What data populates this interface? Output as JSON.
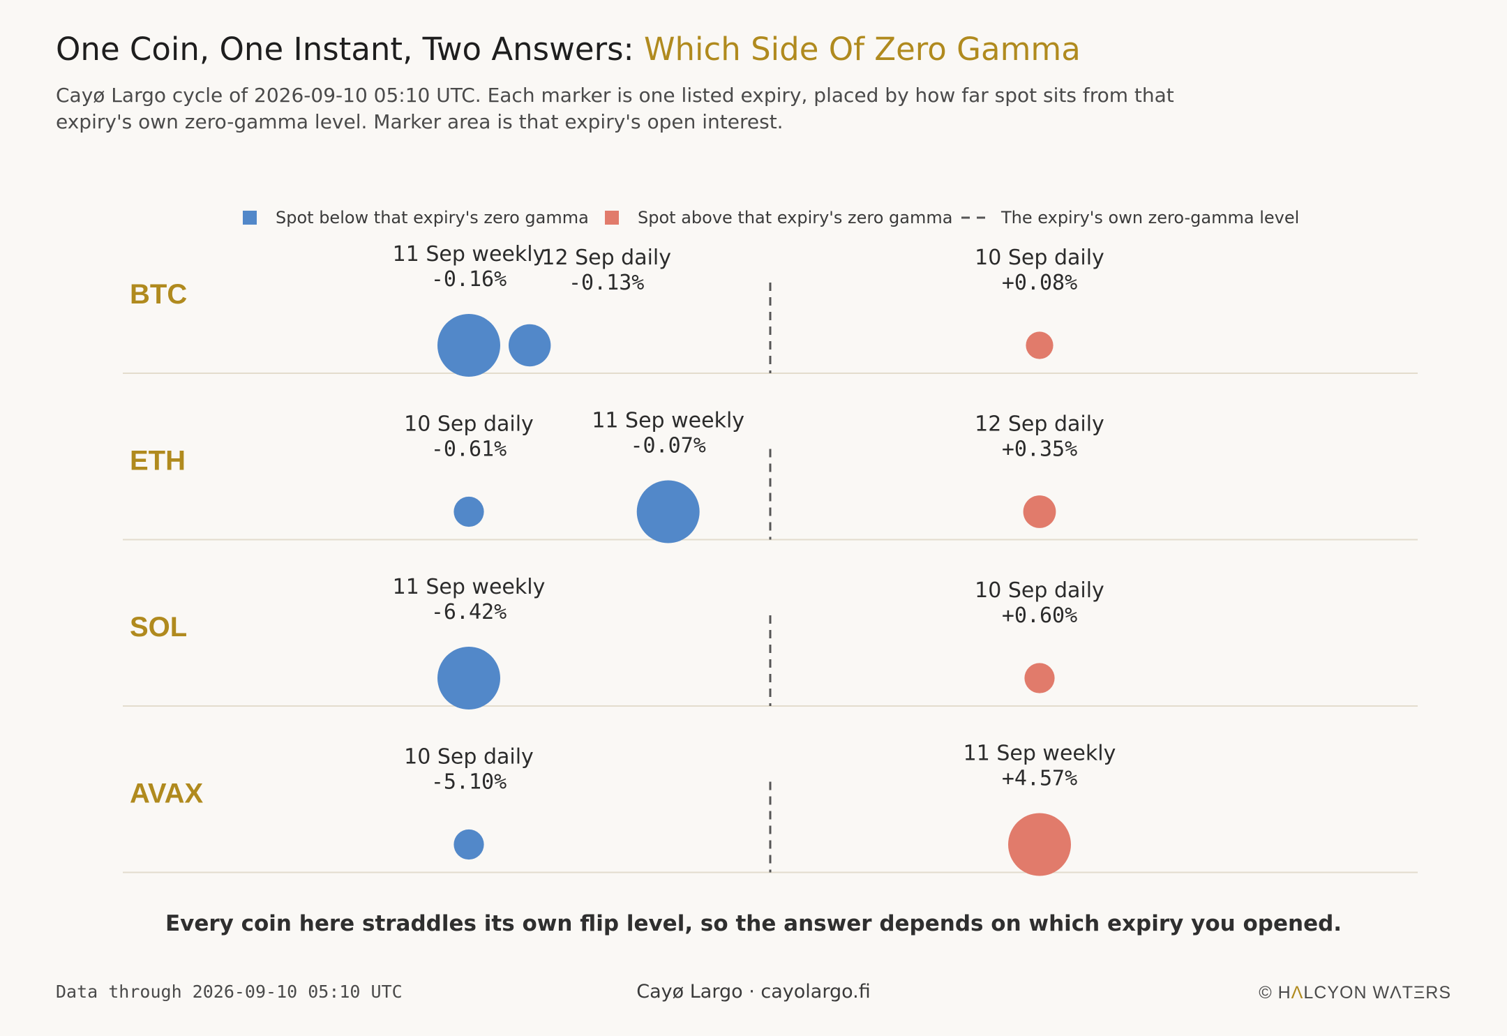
{
  "title_main": "One Coin, One Instant, Two Answers: ",
  "title_accent": "Which Side Of Zero Gamma",
  "subtitle": "Cayø Largo cycle of 2026-09-10 05:10 UTC. Each marker is one listed expiry, placed by how far spot sits from that expiry's own zero-gamma level. Marker area is that expiry's open interest.",
  "legend": {
    "below": "Spot below that expiry's zero gamma",
    "above": "Spot above that expiry's zero gamma",
    "zero": "The expiry's own zero-gamma level"
  },
  "colors": {
    "below": "#5288c9",
    "above": "#e17b6b",
    "accent": "#b08a1e",
    "zero_line": "#555555",
    "baseline": "#e3dccd"
  },
  "chart_data": {
    "type": "scatter",
    "xlabel": "",
    "ylabel": "",
    "value_unit": "% from zero gamma",
    "zero_reference": 0,
    "rows": [
      {
        "coin": "BTC",
        "points": [
          {
            "label": "11 Sep weekly",
            "value_label": "-0.16%",
            "value": -0.16,
            "side": "below",
            "oi_rel": 1.0
          },
          {
            "label": "12 Sep daily",
            "value_label": "-0.13%",
            "value": -0.13,
            "side": "below",
            "oi_rel": 0.45
          },
          {
            "label": "10 Sep daily",
            "value_label": "+0.08%",
            "value": 0.08,
            "side": "above",
            "oi_rel": 0.19
          }
        ]
      },
      {
        "coin": "ETH",
        "points": [
          {
            "label": "10 Sep daily",
            "value_label": "-0.61%",
            "value": -0.61,
            "side": "below",
            "oi_rel": 0.23
          },
          {
            "label": "11 Sep weekly",
            "value_label": "-0.07%",
            "value": -0.07,
            "side": "below",
            "oi_rel": 1.0
          },
          {
            "label": "12 Sep daily",
            "value_label": "+0.35%",
            "value": 0.35,
            "side": "above",
            "oi_rel": 0.27
          }
        ]
      },
      {
        "coin": "SOL",
        "points": [
          {
            "label": "11 Sep weekly",
            "value_label": "-6.42%",
            "value": -6.42,
            "side": "below",
            "oi_rel": 1.0
          },
          {
            "label": "10 Sep daily",
            "value_label": "+0.60%",
            "value": 0.6,
            "side": "above",
            "oi_rel": 0.23
          }
        ]
      },
      {
        "coin": "AVAX",
        "points": [
          {
            "label": "10 Sep daily",
            "value_label": "-5.10%",
            "value": -5.1,
            "side": "below",
            "oi_rel": 0.23
          },
          {
            "label": "11 Sep weekly",
            "value_label": "+4.57%",
            "value": 4.57,
            "side": "above",
            "oi_rel": 1.0
          }
        ]
      }
    ]
  },
  "takeaway": "Every coin here straddles its own flip level, so the answer depends on which expiry you opened.",
  "footer": {
    "left": "Data through 2026-09-10 05:10 UTC",
    "center": "Cayø Largo · cayolargo.fi",
    "right_copyright": "©",
    "right_brand_a": "H",
    "right_brand_mark": "Λ",
    "right_brand_b": "LCYON WΛTΞRS"
  }
}
